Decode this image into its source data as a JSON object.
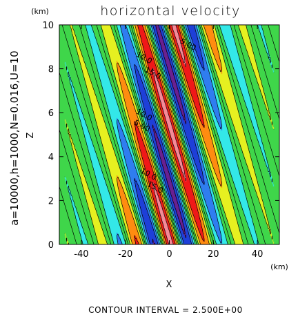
{
  "chart_data": {
    "type": "heatmap",
    "subtype": "filled-contour",
    "title": "horizontal velocity",
    "side_label": "a=10000,h=1000,N=0.016,U=10",
    "xlabel": "X",
    "ylabel": "Z",
    "x_unit": "(km)",
    "y_unit": "(km)",
    "xlim": [
      -50,
      50
    ],
    "ylim": [
      0,
      10
    ],
    "x_ticks": [
      -40,
      -20,
      0,
      20,
      40
    ],
    "y_ticks": [
      0,
      2,
      4,
      6,
      8,
      10
    ],
    "footer": "CONTOUR INTERVAL = 2.500E+00",
    "contour_interval": 2.5,
    "background_value": 10,
    "vertical_wavelength_km": 5.2,
    "tilt_km_per_km": 3.0,
    "grid": false,
    "labeled_contours": [
      {
        "label": "5.00",
        "x": 8,
        "z": 9.0
      },
      {
        "label": "10.0",
        "x": -12,
        "z": 8.4
      },
      {
        "label": "15.0",
        "x": -8,
        "z": 7.7
      },
      {
        "label": "10.0",
        "x": -12,
        "z": 5.8
      },
      {
        "label": "5.00",
        "x": -13,
        "z": 5.3
      },
      {
        "label": "10.0",
        "x": -10,
        "z": 3.1
      },
      {
        "label": "15.0",
        "x": -7,
        "z": 2.5
      }
    ],
    "color_levels": [
      {
        "min": -99,
        "max": 0,
        "color": "#6a2090"
      },
      {
        "min": 0,
        "max": 2.5,
        "color": "#1e3fd8"
      },
      {
        "min": 2.5,
        "max": 5,
        "color": "#2f7df0"
      },
      {
        "min": 5,
        "max": 7.5,
        "color": "#33e8e8"
      },
      {
        "min": 7.5,
        "max": 12.5,
        "color": "#3fd64a"
      },
      {
        "min": 12.5,
        "max": 15,
        "color": "#e6f020"
      },
      {
        "min": 15,
        "max": 17.5,
        "color": "#ff8c10"
      },
      {
        "min": 17.5,
        "max": 20,
        "color": "#f01818"
      },
      {
        "min": 20,
        "max": 99,
        "color": "#f58a98"
      }
    ]
  }
}
